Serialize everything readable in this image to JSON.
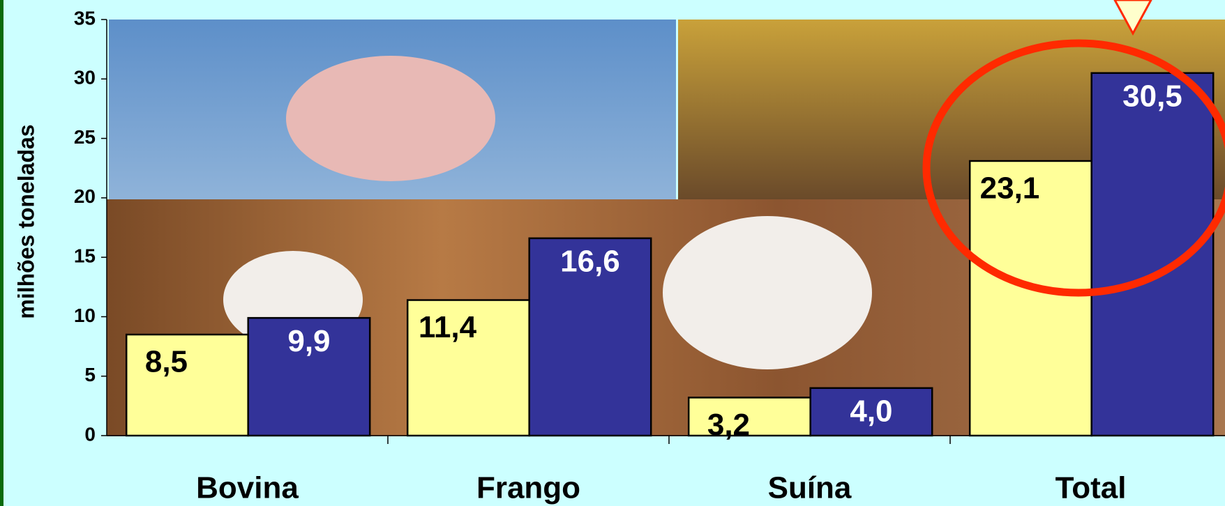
{
  "chart_data": {
    "type": "bar",
    "y_label": "milhões toneladas",
    "categories": [
      "Bovina",
      "Frango",
      "Suína",
      "Total"
    ],
    "series": [
      {
        "color": "#ffff99",
        "values": [
          8.5,
          11.4,
          3.2,
          23.1
        ],
        "value_labels": [
          "8,5",
          "11,4",
          "3,2",
          "23,1"
        ]
      },
      {
        "color": "#333399",
        "values": [
          9.9,
          16.6,
          4.0,
          30.5
        ],
        "value_labels": [
          "9,9",
          "16,6",
          "4,0",
          "30,5"
        ]
      }
    ],
    "ylim": [
      0,
      35
    ],
    "yticks": [
      0,
      5,
      10,
      15,
      20,
      25,
      30,
      35
    ]
  }
}
